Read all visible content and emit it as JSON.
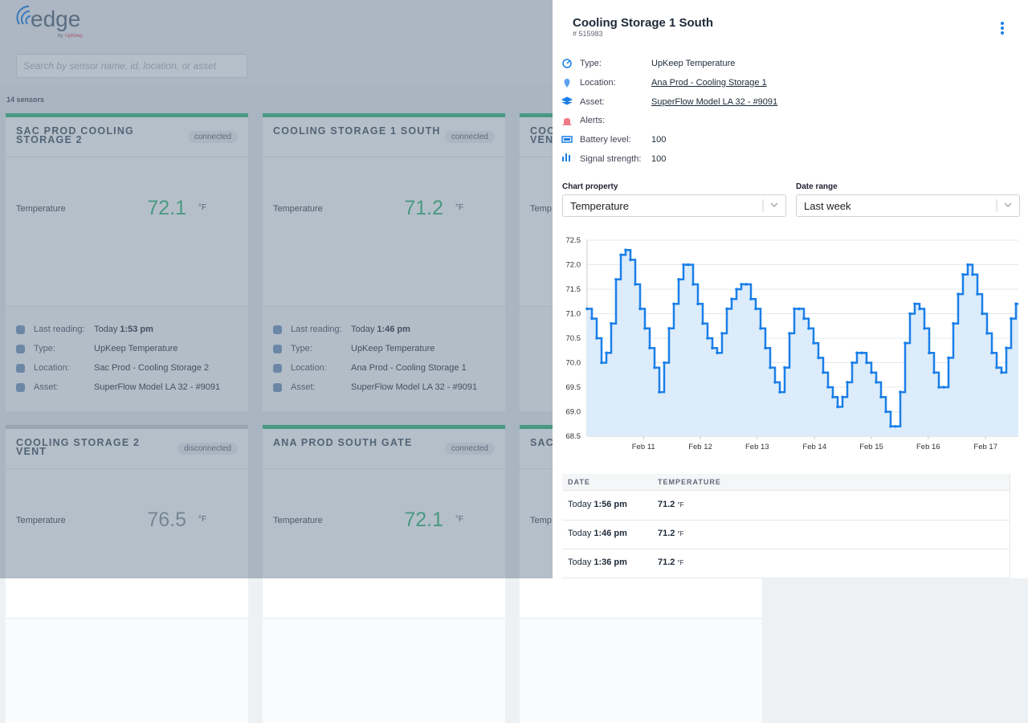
{
  "app": {
    "logo": "edge",
    "logo_by": "by",
    "logo_brand": "UpKeep",
    "search_placeholder": "Search by sensor name, id, location, or asset",
    "sensor_count": "14 sensors",
    "cards": [
      {
        "title_lines": [
          "SAC PROD COOLING",
          "STORAGE 2"
        ],
        "status": "connected",
        "bar_color": "#3dbb7c",
        "property": "Temperature",
        "value": 72.1,
        "value_color": "#3dbb7c",
        "unit": "°F",
        "rows": [
          {
            "label": "Last reading:",
            "value": "Today",
            "value_bold": "1:53 pm"
          },
          {
            "label": "Type:",
            "value": "UpKeep Temperature"
          },
          {
            "label": "Location:",
            "value": "Sac Prod - Cooling Storage 2"
          },
          {
            "label": "Asset:",
            "value": "SuperFlow Model LA 32 - #9091"
          }
        ]
      },
      {
        "title_lines": [
          "COOLING STORAGE 1 SOUTH"
        ],
        "status": "connected",
        "bar_color": "#3dbb7c",
        "property": "Temperature",
        "value": 71.2,
        "value_color": "#3dbb7c",
        "unit": "°F",
        "rows": [
          {
            "label": "Last reading:",
            "value": "Today",
            "value_bold": "1:46 pm"
          },
          {
            "label": "Type:",
            "value": "UpKeep Temperature"
          },
          {
            "label": "Location:",
            "value": "Ana Prod - Cooling Storage 1"
          },
          {
            "label": "Asset:",
            "value": "SuperFlow Model LA 32 - #9091"
          }
        ]
      },
      {
        "title_lines": [
          "COO",
          "VEN"
        ],
        "bar_color": "#3dbb7c",
        "property": "Temp"
      },
      {
        "title_lines": [
          "COOLING STORAGE 2",
          "VENT"
        ],
        "status": "disconnected",
        "bar_color": "#c9cfd4",
        "property": "Temperature",
        "value": 76.5,
        "value_color": "#8a96a2",
        "unit": "°F"
      },
      {
        "title_lines": [
          "ANA PROD SOUTH GATE"
        ],
        "status": "connected",
        "bar_color": "#3dbb7c",
        "property": "Temperature",
        "value": 72.1,
        "value_color": "#3dbb7c",
        "unit": "°F"
      },
      {
        "title_lines": [
          "SAC"
        ],
        "bar_color": "#3dbb7c",
        "property": "Temp"
      }
    ]
  },
  "panel": {
    "title": "Cooling Storage 1 South",
    "id": "# 515983",
    "details": [
      {
        "label": "Type:",
        "value": "UpKeep Temperature"
      },
      {
        "label": "Location:",
        "value": "Ana Prod - Cooling Storage 1",
        "link": true
      },
      {
        "label": "Asset:",
        "value": "SuperFlow Model LA 32 - #9091",
        "link": true
      },
      {
        "label": "Alerts:"
      },
      {
        "label": "Battery level:",
        "value": 100
      },
      {
        "label": "Signal strength:",
        "value": 100
      }
    ],
    "chart_property_label": "Chart property",
    "chart_property": "Temperature",
    "date_range_label": "Date range",
    "date_range": "Last week",
    "table": {
      "headers": [
        "DATE",
        "TEMPERATURE"
      ],
      "rows": [
        {
          "day": "Today",
          "time": "1:56 pm",
          "value": 71.2,
          "unit": "°F"
        },
        {
          "day": "Today",
          "time": "1:46 pm",
          "value": 71.2,
          "unit": "°F"
        },
        {
          "day": "Today",
          "time": "1:36 pm",
          "value": 71.2,
          "unit": "°F"
        }
      ]
    }
  },
  "chart_data": {
    "type": "line",
    "step": true,
    "color": "#1a7fe8",
    "fill": "#dcecfb",
    "grid": true,
    "values": [
      71.1,
      70.9,
      70.5,
      70.0,
      70.2,
      70.8,
      71.7,
      72.2,
      72.3,
      72.1,
      71.6,
      71.1,
      70.7,
      70.3,
      69.9,
      69.4,
      70.0,
      70.7,
      71.2,
      71.7,
      72.0,
      72.0,
      71.6,
      71.2,
      70.8,
      70.5,
      70.3,
      70.2,
      70.6,
      71.1,
      71.3,
      71.5,
      71.6,
      71.6,
      71.3,
      71.1,
      70.7,
      70.3,
      69.9,
      69.6,
      69.4,
      69.9,
      70.6,
      71.1,
      71.1,
      70.9,
      70.7,
      70.4,
      70.1,
      69.8,
      69.5,
      69.3,
      69.1,
      69.3,
      69.6,
      70.0,
      70.2,
      70.2,
      70.0,
      69.8,
      69.6,
      69.3,
      69.0,
      68.7,
      68.7,
      69.4,
      70.4,
      71.0,
      71.2,
      71.1,
      70.7,
      70.2,
      69.8,
      69.5,
      69.5,
      70.1,
      70.8,
      71.4,
      71.8,
      72.0,
      71.8,
      71.4,
      71.0,
      70.6,
      70.2,
      69.9,
      69.8,
      70.3,
      70.9,
      71.2
    ],
    "xlim": [
      0,
      89.5
    ],
    "xticks": [
      {
        "value": 11.7,
        "label": "Feb 11"
      },
      {
        "value": 23.5,
        "label": "Feb 12"
      },
      {
        "value": 35.3,
        "label": "Feb 13"
      },
      {
        "value": 47.2,
        "label": "Feb 14"
      },
      {
        "value": 59,
        "label": "Feb 15"
      },
      {
        "value": 70.8,
        "label": "Feb 16"
      },
      {
        "value": 82.7,
        "label": "Feb 17"
      }
    ],
    "ylim": [
      68.5,
      72.5
    ],
    "yticks": [
      68.5,
      {
        "value": 69,
        "label": "69.0"
      },
      69.5,
      {
        "value": 70,
        "label": "70.0"
      },
      70.5,
      {
        "value": 71,
        "label": "71.0"
      },
      71.5,
      {
        "value": 72,
        "label": "72.0"
      },
      72.5
    ]
  }
}
